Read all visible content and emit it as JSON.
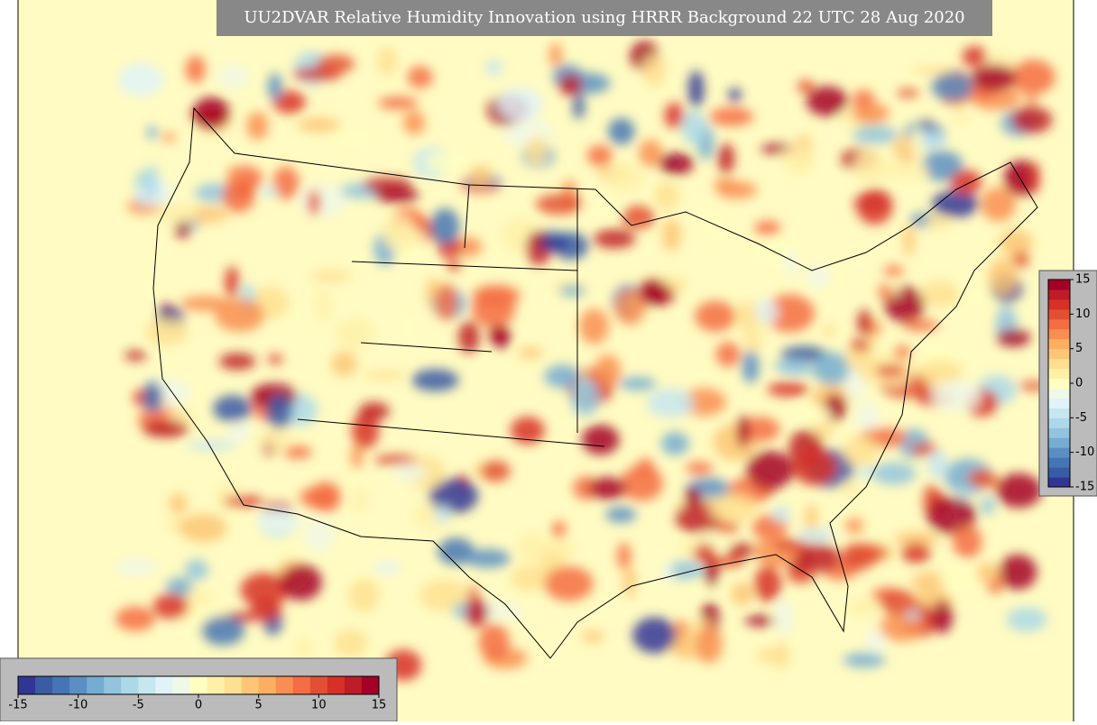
{
  "title": "UU2DVAR Relative Humidity Innovation using HRRR Background 22 UTC 28 Aug 2020",
  "colorbar": {
    "range": [
      -15,
      15
    ],
    "ticks": [
      -15,
      -10,
      -5,
      0,
      5,
      10,
      15
    ],
    "colors": [
      "#313695",
      "#3a5ba5",
      "#4575b4",
      "#5b8fc3",
      "#74add1",
      "#93c4de",
      "#abd9e9",
      "#c6e6f0",
      "#e0f3f8",
      "#f0f8e8",
      "#ffffbf",
      "#fff0a8",
      "#fee090",
      "#fdc576",
      "#fdae61",
      "#f98e52",
      "#f46d43",
      "#e34f33",
      "#d73027",
      "#be1c27",
      "#a50026"
    ]
  },
  "background": "#fffbc2"
}
